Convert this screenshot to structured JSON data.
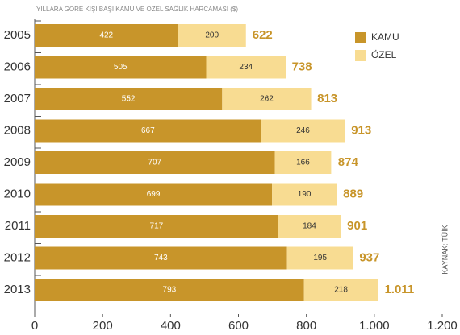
{
  "chart_data": {
    "type": "stacked-bar",
    "orientation": "horizontal",
    "title": "YILLARA GÖRE KİŞİ BAŞI KAMU VE ÖZEL SAĞLIK HARCAMASI ($)",
    "source": "KAYNAK: TÜİK",
    "categories": [
      "2005",
      "2006",
      "2007",
      "2008",
      "2009",
      "2010",
      "2011",
      "2012",
      "2013"
    ],
    "series": [
      {
        "name": "KAMU",
        "color": "#c8952a",
        "values": [
          422,
          505,
          552,
          667,
          707,
          699,
          717,
          743,
          793
        ]
      },
      {
        "name": "ÖZEL",
        "color": "#f8dc92",
        "values": [
          200,
          234,
          262,
          246,
          166,
          190,
          184,
          195,
          218
        ]
      }
    ],
    "totals": {
      "values": [
        622,
        738,
        813,
        913,
        874,
        889,
        901,
        937,
        1011
      ],
      "value_labels": [
        "622",
        "738",
        "813",
        "913",
        "874",
        "889",
        "901",
        "937",
        "1.011"
      ],
      "color": "#c8952a"
    },
    "xlim": [
      0,
      1200
    ],
    "xticks": [
      0,
      200,
      400,
      600,
      800,
      {
        "value": 1000,
        "label": "1.000"
      },
      {
        "value": 1200,
        "label": "1.200"
      }
    ],
    "legend": "top-right"
  }
}
